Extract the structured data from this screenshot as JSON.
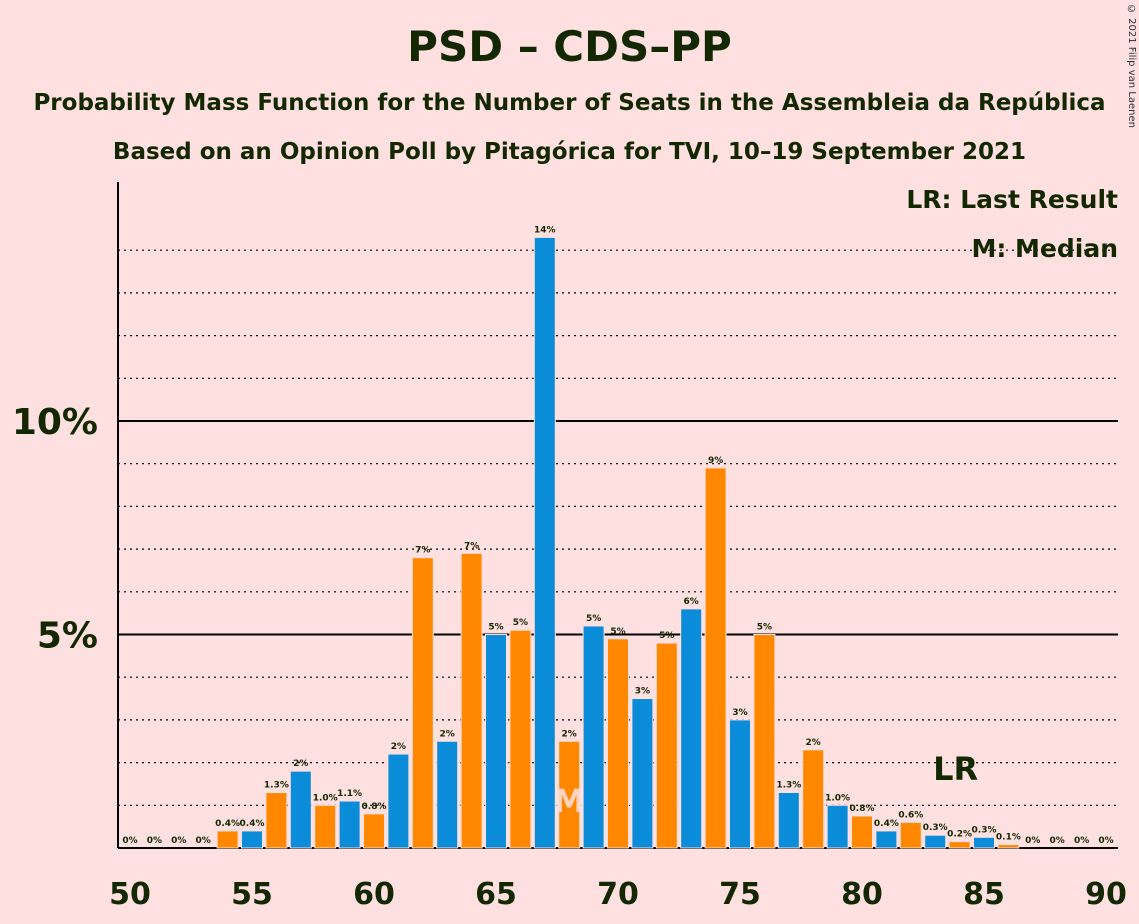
{
  "chart_data": {
    "type": "bar",
    "title": "PSD – CDS–PP",
    "subtitle": "Probability Mass Function for the Number of Seats in the Assembleia da República",
    "subtitle2": "Based on an Opinion Poll by Pitagórica for TVI, 10–19 September 2021",
    "copyright": "© 2021 Filip van Laenen",
    "legend": {
      "last_result": "LR: Last Result",
      "median": "M: Median",
      "placement": "top-right"
    },
    "x_ticks": [
      "50",
      "55",
      "60",
      "65",
      "70",
      "75",
      "80",
      "85",
      "90"
    ],
    "y_ticks": [
      "5%",
      "10%"
    ],
    "ylim": [
      0,
      15
    ],
    "grid": "dotted every 1%, solid at 5% and 10%",
    "colors": {
      "odd": "#0a8cd8",
      "even": "#ff8800",
      "text": "#132800"
    },
    "markers": {
      "median_seat": 68,
      "median_label": "M",
      "last_result_seat": 84,
      "last_result_label": "LR"
    },
    "bars": [
      {
        "seat": 50,
        "value": 0,
        "label": "0%"
      },
      {
        "seat": 51,
        "value": 0,
        "label": "0%"
      },
      {
        "seat": 52,
        "value": 0,
        "label": "0%"
      },
      {
        "seat": 53,
        "value": 0,
        "label": "0%"
      },
      {
        "seat": 54,
        "value": 0.4,
        "label": "0.4%"
      },
      {
        "seat": 55,
        "value": 0.4,
        "label": "0.4%"
      },
      {
        "seat": 56,
        "value": 1.3,
        "label": "1.3%"
      },
      {
        "seat": 57,
        "value": 1.8,
        "label": "2%"
      },
      {
        "seat": 58,
        "value": 1.0,
        "label": "1.0%"
      },
      {
        "seat": 59,
        "value": 1.1,
        "label": "1.1%"
      },
      {
        "seat": 60,
        "value": 0.8,
        "label": "0.8%"
      },
      {
        "seat": 61,
        "value": 2.2,
        "label": "2%"
      },
      {
        "seat": 62,
        "value": 6.8,
        "label": "7%"
      },
      {
        "seat": 63,
        "value": 2.5,
        "label": "2%"
      },
      {
        "seat": 64,
        "value": 6.9,
        "label": "7%"
      },
      {
        "seat": 65,
        "value": 5.0,
        "label": "5%"
      },
      {
        "seat": 66,
        "value": 5.1,
        "label": "5%"
      },
      {
        "seat": 67,
        "value": 14.3,
        "label": "14%"
      },
      {
        "seat": 68,
        "value": 2.5,
        "label": "2%"
      },
      {
        "seat": 69,
        "value": 5.2,
        "label": "5%"
      },
      {
        "seat": 70,
        "value": 4.9,
        "label": "5%"
      },
      {
        "seat": 71,
        "value": 3.5,
        "label": "3%"
      },
      {
        "seat": 72,
        "value": 4.8,
        "label": "5%"
      },
      {
        "seat": 73,
        "value": 5.6,
        "label": "6%"
      },
      {
        "seat": 74,
        "value": 8.9,
        "label": "9%"
      },
      {
        "seat": 75,
        "value": 3.0,
        "label": "3%"
      },
      {
        "seat": 76,
        "value": 5.0,
        "label": "5%"
      },
      {
        "seat": 77,
        "value": 1.3,
        "label": "1.3%"
      },
      {
        "seat": 78,
        "value": 2.3,
        "label": "2%"
      },
      {
        "seat": 79,
        "value": 1.0,
        "label": "1.0%"
      },
      {
        "seat": 80,
        "value": 0.75,
        "label": "0.8%"
      },
      {
        "seat": 81,
        "value": 0.4,
        "label": "0.4%"
      },
      {
        "seat": 82,
        "value": 0.6,
        "label": "0.6%"
      },
      {
        "seat": 83,
        "value": 0.3,
        "label": "0.3%"
      },
      {
        "seat": 84,
        "value": 0.15,
        "label": "0.2%"
      },
      {
        "seat": 85,
        "value": 0.25,
        "label": "0.3%"
      },
      {
        "seat": 86,
        "value": 0.08,
        "label": "0.1%"
      },
      {
        "seat": 87,
        "value": 0,
        "label": "0%"
      },
      {
        "seat": 88,
        "value": 0,
        "label": "0%"
      },
      {
        "seat": 89,
        "value": 0,
        "label": "0%"
      },
      {
        "seat": 90,
        "value": 0,
        "label": "0%"
      }
    ]
  }
}
